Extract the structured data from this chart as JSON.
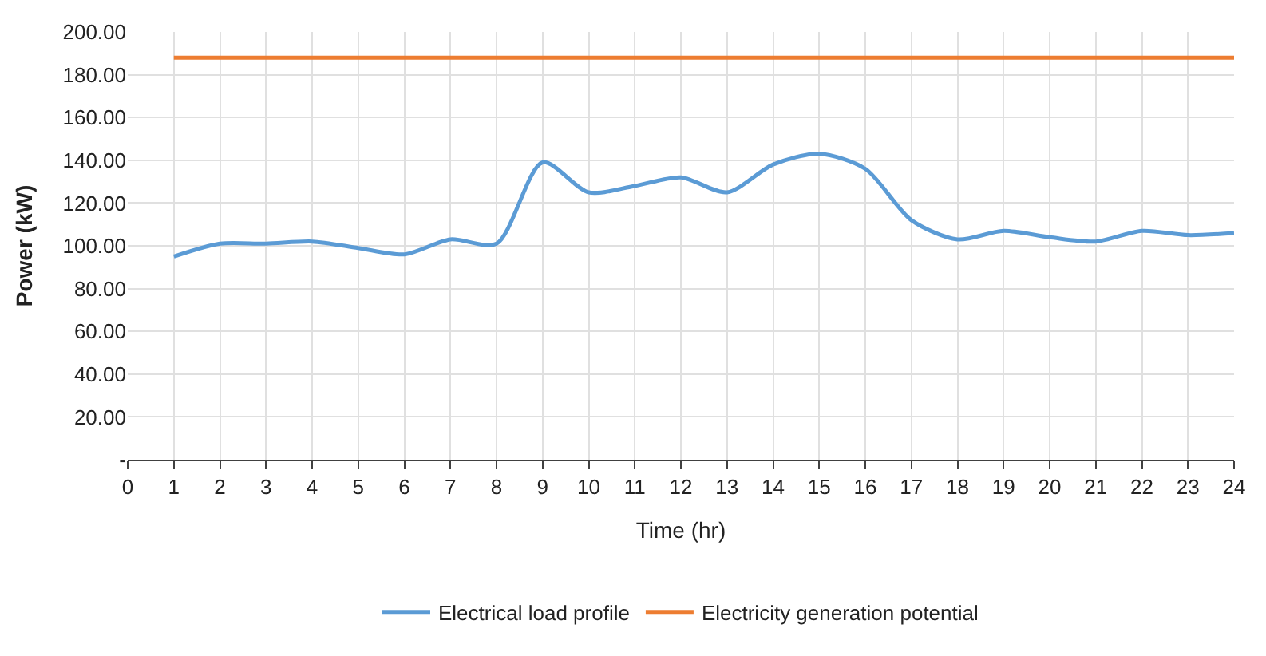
{
  "chart_data": {
    "type": "line",
    "xlabel": "Time (hr)",
    "ylabel": "Power (kW)",
    "x": [
      1,
      2,
      3,
      4,
      5,
      6,
      7,
      8,
      9,
      10,
      11,
      12,
      13,
      14,
      15,
      16,
      17,
      18,
      19,
      20,
      21,
      22,
      23,
      24
    ],
    "series": [
      {
        "name": "Electrical load profile",
        "color": "#5b9bd5",
        "values": [
          95,
          101,
          101,
          102,
          99,
          96,
          103,
          101,
          139,
          125,
          128,
          132,
          125,
          138,
          143,
          136,
          112,
          103,
          107,
          104,
          102,
          107,
          105,
          106
        ]
      },
      {
        "name": "Electricity generation potential",
        "color": "#ed7d31",
        "values": [
          188,
          188,
          188,
          188,
          188,
          188,
          188,
          188,
          188,
          188,
          188,
          188,
          188,
          188,
          188,
          188,
          188,
          188,
          188,
          188,
          188,
          188,
          188,
          188
        ]
      }
    ],
    "xlim": [
      0,
      24
    ],
    "xticks": [
      0,
      1,
      2,
      3,
      4,
      5,
      6,
      7,
      8,
      9,
      10,
      11,
      12,
      13,
      14,
      15,
      16,
      17,
      18,
      19,
      20,
      21,
      22,
      23,
      24
    ],
    "ylim": [
      0,
      200
    ],
    "yticks": [
      {
        "value": 0,
        "label": "-"
      },
      {
        "value": 20,
        "label": "20.00"
      },
      {
        "value": 40,
        "label": "40.00"
      },
      {
        "value": 60,
        "label": "60.00"
      },
      {
        "value": 80,
        "label": "80.00"
      },
      {
        "value": 100,
        "label": "100.00"
      },
      {
        "value": 120,
        "label": "120.00"
      },
      {
        "value": 140,
        "label": "140.00"
      },
      {
        "value": 160,
        "label": "160.00"
      },
      {
        "value": 180,
        "label": "180.00"
      },
      {
        "value": 200,
        "label": "200.00"
      }
    ],
    "grid": true,
    "legend": "bottom",
    "marker": "none",
    "line_style": "solid"
  }
}
